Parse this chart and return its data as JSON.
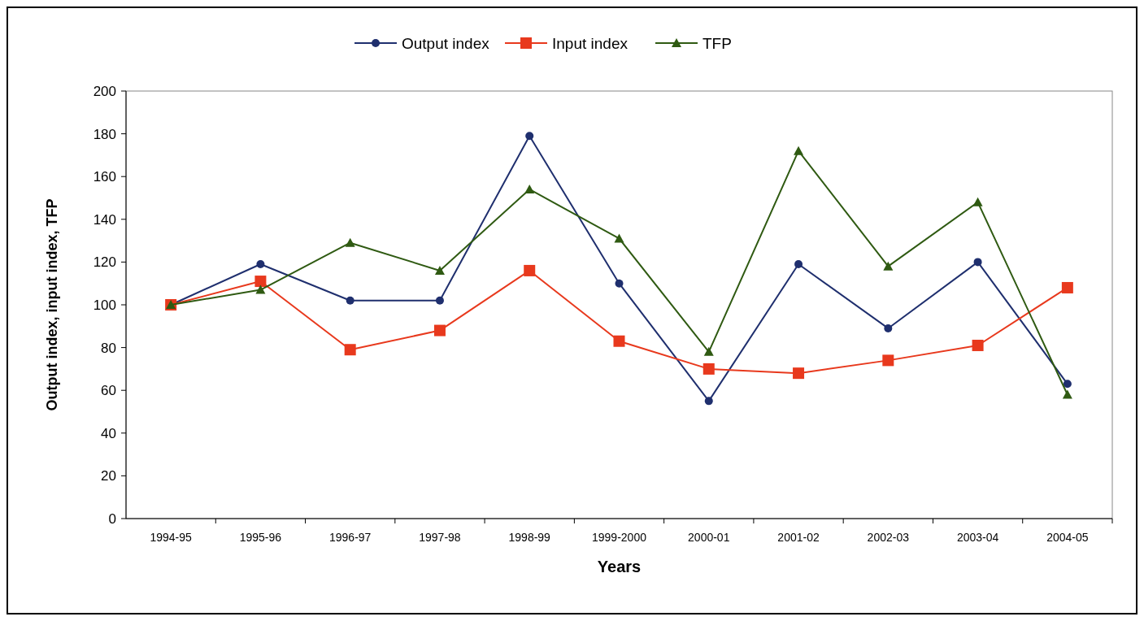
{
  "chart_data": {
    "type": "line",
    "xlabel": "Years",
    "ylabel": "Output index, input index, TFP",
    "categories": [
      "1994-95",
      "1995-96",
      "1996-97",
      "1997-98",
      "1998-99",
      "1999-2000",
      "2000-01",
      "2001-02",
      "2002-03",
      "2003-04",
      "2004-05"
    ],
    "series": [
      {
        "name": "Output index",
        "color": "#1f2f6e",
        "marker": "circle",
        "values": [
          100,
          119,
          102,
          102,
          179,
          110,
          55,
          119,
          89,
          120,
          63
        ]
      },
      {
        "name": "Input index",
        "color": "#e8391d",
        "marker": "square",
        "values": [
          100,
          111,
          79,
          88,
          116,
          83,
          70,
          68,
          74,
          81,
          108
        ]
      },
      {
        "name": "TFP",
        "color": "#2f5a12",
        "marker": "triangle",
        "values": [
          100,
          107,
          129,
          116,
          154,
          131,
          78,
          172,
          118,
          148,
          58
        ]
      }
    ],
    "ylim": [
      0,
      200
    ],
    "yticks": [
      0,
      20,
      40,
      60,
      80,
      100,
      120,
      140,
      160,
      180,
      200
    ],
    "grid": false,
    "legend": "top"
  }
}
